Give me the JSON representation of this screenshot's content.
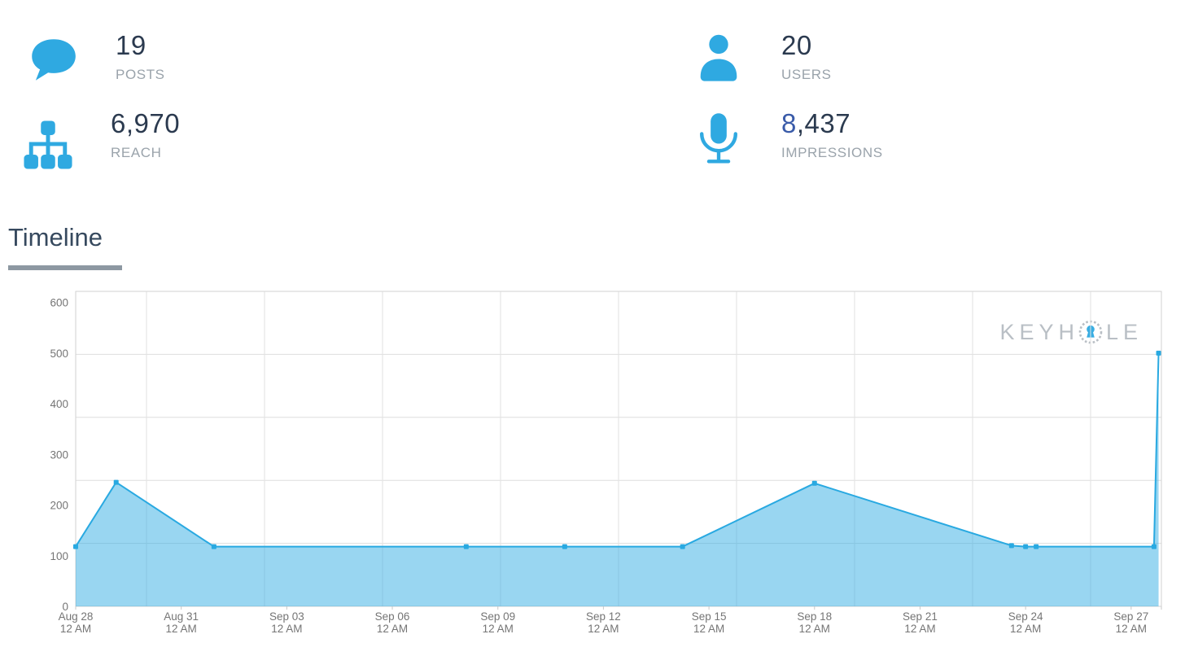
{
  "stats": {
    "posts": {
      "value": "19",
      "label": "POSTS",
      "icon": "speech-bubble-icon"
    },
    "reach": {
      "value": "6,970",
      "label": "REACH",
      "icon": "sitemap-icon"
    },
    "users": {
      "value": "20",
      "label": "USERS",
      "icon": "person-icon"
    },
    "impressions": {
      "value_first": "8",
      "value_rest": ",437",
      "label": "IMPRESSIONS",
      "icon": "microphone-icon"
    }
  },
  "section": {
    "title": "Timeline"
  },
  "watermark": {
    "text_left": "KEYH",
    "text_right": "LE",
    "name": "KEYHOLE"
  },
  "colors": {
    "accent_blue": "#2FA9E1",
    "line_blue": "#29A9E1",
    "area_fill": "rgba(41,169,225,0.48)",
    "number_navy": "#2B3A4F",
    "impressions_first_digit": "#3A5BA9",
    "label_gray": "#9AA3AB",
    "axis_text_gray": "#757575",
    "gridline_gray": "#DEDEDE",
    "border_gray": "#D2D2D2",
    "heading_slate": "#36495E",
    "underline_gray": "#8D98A2",
    "watermark_gray": "#B6BCC2"
  },
  "chart_data": {
    "type": "area",
    "title": "Timeline",
    "legend_position": "none",
    "grid": {
      "horizontal_divisions": 5,
      "vertical_lines": 9,
      "grid_on": true
    },
    "x_domain_days": [
      0,
      30.86
    ],
    "y_ticks": [
      0,
      100,
      200,
      300,
      400,
      500,
      600
    ],
    "y_axis_max": 622,
    "x_ticks": [
      {
        "date": "Aug 28",
        "time": "12 AM",
        "day": 0
      },
      {
        "date": "Aug 31",
        "time": "12 AM",
        "day": 3
      },
      {
        "date": "Sep 03",
        "time": "12 AM",
        "day": 6
      },
      {
        "date": "Sep 06",
        "time": "12 AM",
        "day": 9
      },
      {
        "date": "Sep 09",
        "time": "12 AM",
        "day": 12
      },
      {
        "date": "Sep 12",
        "time": "12 AM",
        "day": 15
      },
      {
        "date": "Sep 15",
        "time": "12 AM",
        "day": 18
      },
      {
        "date": "Sep 18",
        "time": "12 AM",
        "day": 21
      },
      {
        "date": "Sep 21",
        "time": "12 AM",
        "day": 24
      },
      {
        "date": "Sep 24",
        "time": "12 AM",
        "day": 27
      },
      {
        "date": "Sep 27",
        "time": "12 AM",
        "day": 30
      }
    ],
    "series": [
      {
        "name": "Timeline",
        "color": "#29A9E1",
        "fill": "rgba(41,169,225,0.48)",
        "points": [
          {
            "label": "Aug 28 12 AM",
            "day": 0,
            "value": 118
          },
          {
            "label": "Aug 29 4 AM",
            "day": 1.15,
            "value": 245
          },
          {
            "label": "Sep 01 12 AM",
            "day": 3.93,
            "value": 118
          },
          {
            "label": "Sep 08 2 AM",
            "day": 11.1,
            "value": 118
          },
          {
            "label": "Sep 10 10 PM",
            "day": 13.9,
            "value": 118
          },
          {
            "label": "Sep 14 6 AM",
            "day": 17.25,
            "value": 118
          },
          {
            "label": "Sep 18 12 AM",
            "day": 21,
            "value": 243
          },
          {
            "label": "Sep 23 2 PM",
            "day": 26.6,
            "value": 120
          },
          {
            "label": "Sep 24 12 AM",
            "day": 27,
            "value": 118
          },
          {
            "label": "Sep 24 7 AM",
            "day": 27.3,
            "value": 118
          },
          {
            "label": "Sep 27 4 PM",
            "day": 30.65,
            "value": 118
          },
          {
            "label": "Sep 27 7 PM",
            "day": 30.78,
            "value": 500
          }
        ]
      }
    ]
  }
}
